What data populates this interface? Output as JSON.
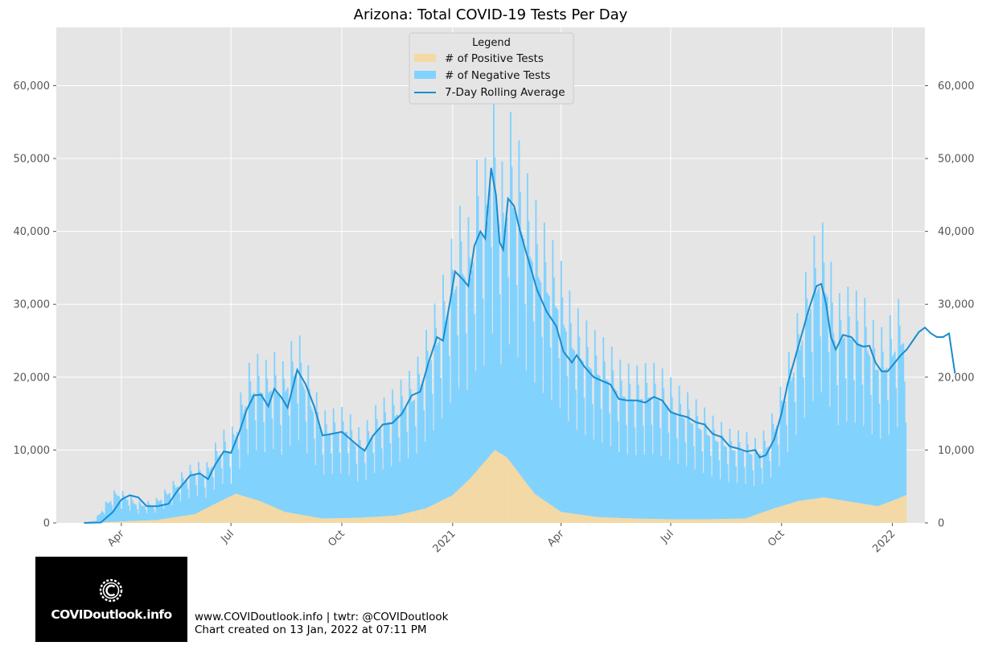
{
  "chart_data": {
    "type": "bar",
    "title": "Arizona: Total COVID-19 Tests Per Day",
    "stacked": true,
    "y_axis": {
      "range": [
        0,
        68000
      ],
      "ticks": [
        0,
        10000,
        20000,
        30000,
        40000,
        50000,
        60000
      ],
      "tick_labels": [
        "0",
        "10,000",
        "20,000",
        "30,000",
        "40,000",
        "50,000",
        "60,000"
      ],
      "mirrored_right": true
    },
    "x_axis": {
      "type": "date",
      "range": [
        "2020-02-07",
        "2022-01-28"
      ],
      "ticks": [
        "2020-04-01",
        "2020-07-01",
        "2020-10-01",
        "2021-01-01",
        "2021-04-01",
        "2021-07-01",
        "2021-10-01",
        "2022-01-01"
      ],
      "tick_labels": [
        "Apr",
        "Jul",
        "Oct",
        "2021",
        "Apr",
        "Jul",
        "Oct",
        "2022"
      ]
    },
    "grid": true,
    "legend": {
      "title": "Legend",
      "placement": "top-center",
      "entries": [
        {
          "label": "# of Positive Tests",
          "color": "#f3d9a5",
          "kind": "bar"
        },
        {
          "label": "# of Negative Tests",
          "color": "#82d2fe",
          "kind": "bar"
        },
        {
          "label": "7-Day Rolling Average",
          "color": "#1a8ccf",
          "kind": "line"
        }
      ]
    },
    "daily": {
      "start_date": "2020-03-01",
      "end_date": "2022-01-12",
      "weekly_dip": 0.55,
      "dip_day_offset": 4
    },
    "total_anchors": [
      [
        "2020-03-01",
        0
      ],
      [
        "2020-03-10",
        300
      ],
      [
        "2020-03-20",
        2500
      ],
      [
        "2020-03-28",
        3800
      ],
      [
        "2020-04-08",
        3000
      ],
      [
        "2020-04-15",
        2300
      ],
      [
        "2020-04-28",
        2400
      ],
      [
        "2020-05-08",
        3700
      ],
      [
        "2020-05-20",
        5300
      ],
      [
        "2020-06-01",
        6700
      ],
      [
        "2020-06-10",
        6200
      ],
      [
        "2020-06-18",
        8600
      ],
      [
        "2020-06-25",
        10000
      ],
      [
        "2020-07-01",
        9800
      ],
      [
        "2020-07-08",
        13500
      ],
      [
        "2020-07-15",
        17000
      ],
      [
        "2020-07-22",
        18200
      ],
      [
        "2020-07-30",
        17500
      ],
      [
        "2020-08-05",
        18500
      ],
      [
        "2020-08-12",
        17000
      ],
      [
        "2020-08-20",
        19500
      ],
      [
        "2020-08-25",
        21000
      ],
      [
        "2020-09-05",
        16000
      ],
      [
        "2020-09-15",
        12000
      ],
      [
        "2020-09-25",
        12300
      ],
      [
        "2020-10-05",
        12500
      ],
      [
        "2020-10-12",
        10500
      ],
      [
        "2020-10-18",
        10000
      ],
      [
        "2020-10-28",
        12500
      ],
      [
        "2020-11-10",
        14000
      ],
      [
        "2020-11-20",
        15500
      ],
      [
        "2020-12-01",
        17000
      ],
      [
        "2020-12-12",
        21500
      ],
      [
        "2020-12-22",
        25500
      ],
      [
        "2021-01-01",
        31000
      ],
      [
        "2021-01-08",
        34500
      ],
      [
        "2021-01-15",
        32500
      ],
      [
        "2021-01-22",
        40000
      ],
      [
        "2021-01-29",
        39000
      ],
      [
        "2021-02-02",
        48500
      ],
      [
        "2021-02-08",
        41000
      ],
      [
        "2021-02-12",
        38000
      ],
      [
        "2021-02-17",
        44500
      ],
      [
        "2021-02-25",
        41000
      ],
      [
        "2021-03-05",
        37000
      ],
      [
        "2021-03-15",
        33000
      ],
      [
        "2021-03-30",
        29000
      ],
      [
        "2021-04-10",
        24000
      ],
      [
        "2021-04-20",
        22000
      ],
      [
        "2021-04-30",
        20500
      ],
      [
        "2021-05-10",
        19500
      ],
      [
        "2021-05-20",
        17500
      ],
      [
        "2021-06-01",
        16800
      ],
      [
        "2021-06-15",
        17300
      ],
      [
        "2021-06-25",
        16500
      ],
      [
        "2021-07-05",
        15000
      ],
      [
        "2021-07-20",
        13500
      ],
      [
        "2021-08-05",
        11500
      ],
      [
        "2021-08-20",
        10000
      ],
      [
        "2021-09-01",
        9800
      ],
      [
        "2021-09-10",
        9000
      ],
      [
        "2021-09-20",
        10500
      ],
      [
        "2021-10-01",
        15000
      ],
      [
        "2021-10-10",
        20000
      ],
      [
        "2021-10-18",
        25000
      ],
      [
        "2021-10-26",
        30000
      ],
      [
        "2021-11-02",
        32800
      ],
      [
        "2021-11-08",
        31000
      ],
      [
        "2021-11-15",
        24000
      ],
      [
        "2021-11-22",
        25500
      ],
      [
        "2021-12-01",
        25000
      ],
      [
        "2021-12-10",
        24000
      ],
      [
        "2021-12-18",
        21000
      ],
      [
        "2021-12-26",
        21000
      ],
      [
        "2022-01-03",
        23500
      ],
      [
        "2022-01-12",
        25000
      ],
      [
        "2022-01-20",
        26500
      ],
      [
        "2022-01-25",
        25000
      ]
    ],
    "positive_anchors": [
      [
        "2020-03-01",
        0
      ],
      [
        "2020-04-01",
        200
      ],
      [
        "2020-05-01",
        400
      ],
      [
        "2020-06-01",
        1200
      ],
      [
        "2020-06-20",
        2800
      ],
      [
        "2020-07-05",
        4000
      ],
      [
        "2020-07-25",
        3000
      ],
      [
        "2020-08-15",
        1500
      ],
      [
        "2020-09-15",
        600
      ],
      [
        "2020-10-15",
        700
      ],
      [
        "2020-11-15",
        1000
      ],
      [
        "2020-12-10",
        2000
      ],
      [
        "2021-01-01",
        3800
      ],
      [
        "2021-01-15",
        6000
      ],
      [
        "2021-02-05",
        10000
      ],
      [
        "2021-02-15",
        9000
      ],
      [
        "2021-03-10",
        4000
      ],
      [
        "2021-04-01",
        1500
      ],
      [
        "2021-05-01",
        800
      ],
      [
        "2021-06-01",
        600
      ],
      [
        "2021-07-01",
        500
      ],
      [
        "2021-08-01",
        500
      ],
      [
        "2021-09-01",
        600
      ],
      [
        "2021-09-25",
        2000
      ],
      [
        "2021-10-15",
        3000
      ],
      [
        "2021-11-05",
        3500
      ],
      [
        "2021-12-01",
        2800
      ],
      [
        "2021-12-20",
        2300
      ],
      [
        "2022-01-05",
        3300
      ],
      [
        "2022-01-15",
        4000
      ],
      [
        "2022-01-28",
        13000
      ]
    ],
    "rolling_average": [
      [
        "2020-03-01",
        0
      ],
      [
        "2020-03-15",
        50
      ],
      [
        "2020-03-25",
        1500
      ],
      [
        "2020-04-01",
        3200
      ],
      [
        "2020-04-08",
        3800
      ],
      [
        "2020-04-15",
        3500
      ],
      [
        "2020-04-22",
        2300
      ],
      [
        "2020-05-01",
        2300
      ],
      [
        "2020-05-10",
        2600
      ],
      [
        "2020-05-18",
        4500
      ],
      [
        "2020-05-28",
        6500
      ],
      [
        "2020-06-05",
        6800
      ],
      [
        "2020-06-12",
        6000
      ],
      [
        "2020-06-18",
        8000
      ],
      [
        "2020-06-25",
        9800
      ],
      [
        "2020-07-01",
        9600
      ],
      [
        "2020-07-08",
        12500
      ],
      [
        "2020-07-14",
        15500
      ],
      [
        "2020-07-20",
        17500
      ],
      [
        "2020-07-26",
        17600
      ],
      [
        "2020-08-01",
        16000
      ],
      [
        "2020-08-06",
        18400
      ],
      [
        "2020-08-12",
        17200
      ],
      [
        "2020-08-17",
        15800
      ],
      [
        "2020-08-25",
        21000
      ],
      [
        "2020-09-01",
        19000
      ],
      [
        "2020-09-08",
        16000
      ],
      [
        "2020-09-15",
        12000
      ],
      [
        "2020-09-22",
        12200
      ],
      [
        "2020-10-01",
        12500
      ],
      [
        "2020-10-08",
        11500
      ],
      [
        "2020-10-15",
        10500
      ],
      [
        "2020-10-20",
        9900
      ],
      [
        "2020-10-27",
        12000
      ],
      [
        "2020-11-04",
        13500
      ],
      [
        "2020-11-12",
        13700
      ],
      [
        "2020-11-20",
        15000
      ],
      [
        "2020-11-28",
        17500
      ],
      [
        "2020-12-05",
        18000
      ],
      [
        "2020-12-12",
        22000
      ],
      [
        "2020-12-19",
        25500
      ],
      [
        "2020-12-24",
        25000
      ],
      [
        "2020-12-30",
        30500
      ],
      [
        "2021-01-03",
        34500
      ],
      [
        "2021-01-09",
        33500
      ],
      [
        "2021-01-14",
        32500
      ],
      [
        "2021-01-19",
        38000
      ],
      [
        "2021-01-24",
        40000
      ],
      [
        "2021-01-28",
        39000
      ],
      [
        "2021-02-02",
        48700
      ],
      [
        "2021-02-06",
        45000
      ],
      [
        "2021-02-09",
        38500
      ],
      [
        "2021-02-12",
        37500
      ],
      [
        "2021-02-16",
        44500
      ],
      [
        "2021-02-21",
        43500
      ],
      [
        "2021-02-26",
        40000
      ],
      [
        "2021-03-05",
        36000
      ],
      [
        "2021-03-12",
        32000
      ],
      [
        "2021-03-20",
        29000
      ],
      [
        "2021-03-28",
        27000
      ],
      [
        "2021-04-03",
        23500
      ],
      [
        "2021-04-10",
        22000
      ],
      [
        "2021-04-14",
        23000
      ],
      [
        "2021-04-20",
        21500
      ],
      [
        "2021-04-28",
        20000
      ],
      [
        "2021-05-05",
        19500
      ],
      [
        "2021-05-12",
        19000
      ],
      [
        "2021-05-19",
        17000
      ],
      [
        "2021-05-26",
        16800
      ],
      [
        "2021-06-03",
        16800
      ],
      [
        "2021-06-10",
        16500
      ],
      [
        "2021-06-17",
        17300
      ],
      [
        "2021-06-24",
        16800
      ],
      [
        "2021-07-01",
        15200
      ],
      [
        "2021-07-08",
        14800
      ],
      [
        "2021-07-15",
        14500
      ],
      [
        "2021-07-22",
        13800
      ],
      [
        "2021-07-29",
        13500
      ],
      [
        "2021-08-05",
        12200
      ],
      [
        "2021-08-12",
        11800
      ],
      [
        "2021-08-19",
        10500
      ],
      [
        "2021-08-26",
        10200
      ],
      [
        "2021-09-02",
        9800
      ],
      [
        "2021-09-09",
        10000
      ],
      [
        "2021-09-13",
        9000
      ],
      [
        "2021-09-18",
        9300
      ],
      [
        "2021-09-25",
        11500
      ],
      [
        "2021-10-01",
        15000
      ],
      [
        "2021-10-06",
        19000
      ],
      [
        "2021-10-12",
        22500
      ],
      [
        "2021-10-18",
        26000
      ],
      [
        "2021-10-24",
        29500
      ],
      [
        "2021-10-30",
        32500
      ],
      [
        "2021-11-03",
        32800
      ],
      [
        "2021-11-07",
        30000
      ],
      [
        "2021-11-11",
        25500
      ],
      [
        "2021-11-15",
        23800
      ],
      [
        "2021-11-21",
        25800
      ],
      [
        "2021-11-28",
        25500
      ],
      [
        "2021-12-03",
        24500
      ],
      [
        "2021-12-08",
        24200
      ],
      [
        "2021-12-13",
        24300
      ],
      [
        "2021-12-18",
        22000
      ],
      [
        "2021-12-23",
        20800
      ],
      [
        "2021-12-28",
        20800
      ],
      [
        "2022-01-03",
        22000
      ],
      [
        "2022-01-08",
        23000
      ],
      [
        "2022-01-13",
        23800
      ],
      [
        "2022-01-18",
        25000
      ],
      [
        "2022-01-23",
        26200
      ],
      [
        "2022-01-28",
        26800
      ],
      [
        "2022-02-02",
        26000
      ],
      [
        "2022-02-07",
        25500
      ],
      [
        "2022-02-12",
        25500
      ],
      [
        "2022-02-17",
        26000
      ],
      [
        "2022-02-22",
        20500
      ]
    ]
  },
  "footer": {
    "line1": "www.COVIDoutlook.info | twtr: @COVIDoutlook",
    "line2": "Chart created on 13 Jan, 2022 at 07:11 PM"
  },
  "logo": {
    "text": "COVIDoutlook.info"
  }
}
